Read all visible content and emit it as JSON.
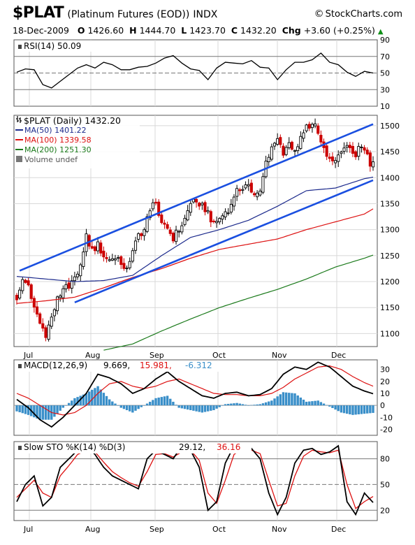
{
  "header": {
    "symbol": "$PLAT",
    "subtitle": "(Platinum Futures (EOD))",
    "exchange": "INDX",
    "brand": "StockCharts.com",
    "date": "18-Dec-2009",
    "open_label": "O",
    "open": "1426.60",
    "high_label": "H",
    "high": "1444.70",
    "low_label": "L",
    "low": "1423.70",
    "close_label": "C",
    "close": "1432.20",
    "chg_label": "Chg",
    "chg": "+3.60 (+0.25%)",
    "up_arrow": "▲"
  },
  "colors": {
    "up_candle": "#000000",
    "down_candle": "#cc0000",
    "ma50": "#1c2a8c",
    "ma100": "#dd1111",
    "ma200": "#1b7a1b",
    "trendline": "#1a4fe0",
    "macd_hist": "#3a8fc9",
    "sto_d": "#dd1111",
    "grid": "#d8d8d8"
  },
  "x_axis": {
    "months": [
      "Jul",
      "Aug",
      "Sep",
      "Oct",
      "Nov",
      "Dec"
    ]
  },
  "chart_data": [
    {
      "type": "line",
      "panel": "rsi",
      "label": "RSI(14) 50.09",
      "y_ticks": [
        90,
        70,
        50,
        30,
        10
      ],
      "ylim": [
        10,
        90
      ],
      "reference_lines": [
        70,
        50,
        30
      ],
      "x": [
        0,
        3,
        6,
        9,
        12,
        15,
        18,
        21,
        24,
        27,
        30,
        33,
        36,
        39,
        42,
        45,
        48,
        51,
        54,
        57,
        60,
        63,
        66,
        69,
        72,
        75,
        78,
        81,
        84,
        87,
        90,
        93,
        96,
        99,
        102,
        105,
        108,
        111,
        114,
        117,
        120,
        123
      ],
      "values": [
        51,
        55,
        54,
        36,
        32,
        40,
        48,
        56,
        60,
        56,
        63,
        60,
        54,
        54,
        57,
        58,
        62,
        68,
        71,
        62,
        55,
        53,
        42,
        56,
        63,
        62,
        61,
        65,
        57,
        56,
        42,
        54,
        63,
        63,
        66,
        74,
        63,
        60,
        51,
        46,
        52,
        50
      ]
    },
    {
      "type": "candlestick",
      "panel": "price",
      "label": "$PLAT (Daily) 1432.20",
      "legend": [
        "MA(50) 1401.22",
        "MA(100) 1339.58",
        "MA(200) 1251.30",
        "Volume undef"
      ],
      "legend_placement": "top-left",
      "y_ticks": [
        1100,
        1150,
        1200,
        1250,
        1300,
        1350,
        1400,
        1450,
        1500
      ],
      "ylim": [
        1075,
        1520
      ],
      "x_knots": [
        0,
        2,
        4,
        6,
        8,
        10,
        12,
        14,
        16,
        18,
        20,
        22,
        24,
        26,
        28,
        30,
        32,
        34,
        36,
        38,
        40,
        42,
        44,
        46,
        48,
        50,
        52,
        54,
        56,
        58,
        60,
        62,
        64,
        66,
        68,
        70,
        72,
        74,
        76,
        78,
        80,
        82,
        84,
        86,
        88,
        90,
        92,
        94,
        96,
        98,
        100,
        102,
        104,
        106,
        108,
        110,
        112,
        114,
        116,
        118,
        120,
        122,
        123
      ],
      "close_knots": [
        1170,
        1205,
        1190,
        1155,
        1120,
        1100,
        1130,
        1165,
        1185,
        1195,
        1215,
        1225,
        1285,
        1260,
        1270,
        1250,
        1240,
        1245,
        1235,
        1230,
        1255,
        1290,
        1300,
        1340,
        1350,
        1320,
        1300,
        1285,
        1300,
        1320,
        1350,
        1360,
        1345,
        1330,
        1315,
        1320,
        1335,
        1345,
        1375,
        1385,
        1380,
        1365,
        1370,
        1430,
        1460,
        1470,
        1450,
        1470,
        1450,
        1480,
        1500,
        1505,
        1490,
        1460,
        1430,
        1440,
        1450,
        1460,
        1440,
        1455,
        1450,
        1430,
        1432
      ],
      "moving_averages": [
        {
          "name": "MA(50)",
          "x": [
            0,
            10,
            20,
            30,
            40,
            50,
            60,
            70,
            80,
            90,
            100,
            110,
            120,
            123
          ],
          "values": [
            1210,
            1205,
            1200,
            1202,
            1212,
            1250,
            1285,
            1300,
            1318,
            1345,
            1375,
            1380,
            1398,
            1401
          ]
        },
        {
          "name": "MA(100)",
          "x": [
            0,
            10,
            20,
            30,
            40,
            50,
            60,
            70,
            80,
            90,
            100,
            110,
            120,
            123
          ],
          "values": [
            1158,
            1163,
            1170,
            1188,
            1208,
            1225,
            1245,
            1262,
            1272,
            1282,
            1300,
            1315,
            1330,
            1340
          ]
        },
        {
          "name": "MA(200)",
          "x": [
            30,
            40,
            50,
            60,
            70,
            80,
            90,
            100,
            110,
            120,
            123
          ],
          "values": [
            1068,
            1080,
            1105,
            1128,
            1150,
            1168,
            1185,
            1205,
            1228,
            1245,
            1251
          ]
        }
      ],
      "trendlines": [
        {
          "x": [
            1,
            123
          ],
          "values": [
            1221,
            1503
          ]
        },
        {
          "x": [
            20,
            123
          ],
          "values": [
            1160,
            1395
          ]
        }
      ]
    },
    {
      "type": "line",
      "panel": "macd",
      "label_parts": [
        "MACD(12,26,9)",
        "9.669",
        "15.981",
        "-6.312"
      ],
      "y_ticks": [
        30,
        20,
        10,
        0,
        -10,
        -20
      ],
      "ylim": [
        -25,
        38
      ],
      "x": [
        0,
        4,
        8,
        12,
        16,
        20,
        24,
        28,
        32,
        36,
        40,
        44,
        48,
        52,
        56,
        60,
        64,
        68,
        72,
        76,
        80,
        84,
        88,
        92,
        96,
        100,
        104,
        108,
        112,
        116,
        120,
        123
      ],
      "series": [
        {
          "name": "MACD",
          "values": [
            5,
            -2,
            -12,
            -18,
            -10,
            0,
            10,
            26,
            23,
            18,
            10,
            14,
            22,
            28,
            20,
            14,
            8,
            6,
            10,
            11,
            8,
            9,
            14,
            26,
            32,
            30,
            36,
            32,
            24,
            16,
            12,
            9.7
          ]
        },
        {
          "name": "Signal",
          "values": [
            10,
            6,
            0,
            -6,
            -8,
            -6,
            0,
            10,
            18,
            20,
            16,
            14,
            16,
            20,
            22,
            18,
            14,
            10,
            9,
            9,
            8,
            8,
            10,
            15,
            22,
            27,
            32,
            33,
            30,
            24,
            19,
            16
          ]
        },
        {
          "name": "Histogram",
          "values": [
            -5,
            -8,
            -12,
            -12,
            -2,
            6,
            10,
            16,
            5,
            -2,
            -6,
            0,
            6,
            8,
            -2,
            -4,
            -6,
            -4,
            1,
            2,
            0,
            1,
            4,
            11,
            10,
            3,
            4,
            -1,
            -6,
            -8,
            -7,
            -6.3
          ]
        }
      ]
    },
    {
      "type": "line",
      "panel": "stochastic",
      "label_parts": [
        "Slow STO %K(14) %D(3)",
        "29.12",
        "36.16"
      ],
      "y_ticks": [
        80,
        50,
        20
      ],
      "ylim": [
        8,
        100
      ],
      "reference_lines": [
        80,
        50,
        20
      ],
      "x": [
        0,
        3,
        6,
        9,
        12,
        15,
        18,
        21,
        24,
        27,
        30,
        33,
        36,
        39,
        42,
        45,
        48,
        51,
        54,
        57,
        60,
        63,
        66,
        69,
        72,
        75,
        78,
        81,
        84,
        87,
        90,
        93,
        96,
        99,
        102,
        105,
        108,
        111,
        114,
        117,
        120,
        123
      ],
      "series": [
        {
          "name": "%K",
          "values": [
            30,
            50,
            60,
            25,
            35,
            70,
            80,
            90,
            95,
            85,
            70,
            60,
            55,
            50,
            45,
            80,
            90,
            85,
            80,
            95,
            90,
            70,
            20,
            30,
            75,
            95,
            90,
            92,
            80,
            40,
            15,
            35,
            75,
            90,
            92,
            85,
            88,
            95,
            30,
            15,
            40,
            29
          ]
        },
        {
          "name": "%D",
          "values": [
            35,
            45,
            55,
            40,
            35,
            60,
            72,
            85,
            90,
            88,
            76,
            65,
            58,
            52,
            48,
            65,
            85,
            86,
            82,
            88,
            90,
            78,
            40,
            28,
            55,
            85,
            92,
            90,
            86,
            55,
            25,
            28,
            60,
            83,
            90,
            88,
            87,
            90,
            50,
            22,
            30,
            36
          ]
        }
      ]
    }
  ]
}
